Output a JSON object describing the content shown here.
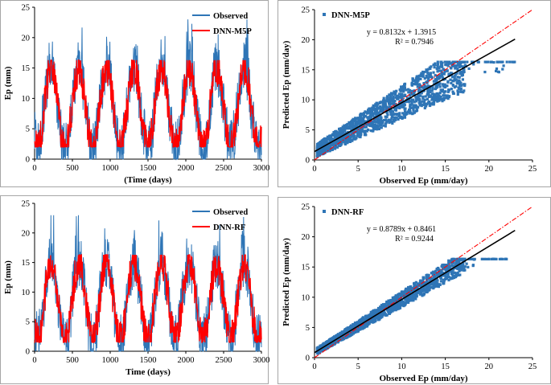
{
  "colors": {
    "observed": "#2e75b6",
    "predicted": "#ff0000",
    "scatter": "#2e75b6",
    "fit": "#000000",
    "ideal": "#ff0000"
  },
  "chart_data": [
    {
      "type": "line",
      "id": "ts-m5p",
      "xlabel": "(Time (days)",
      "ylabel": "Ep (mm)",
      "xlim": [
        0,
        3000
      ],
      "ylim": [
        0,
        25
      ],
      "xticks": [
        "0",
        "500",
        "1000",
        "1500",
        "2000",
        "2500",
        "3000"
      ],
      "yticks": [
        "0",
        "5",
        "10",
        "15",
        "20",
        "25"
      ],
      "series": [
        {
          "name": "Observed",
          "cycle_days": 365,
          "first_peak_day": 220,
          "mean": 8.5,
          "amplitude": 6,
          "max": 23,
          "min": 0
        },
        {
          "name": "DNN-M5P",
          "cycle_days": 365,
          "first_peak_day": 220,
          "mean": 8.5,
          "amplitude": 6.5,
          "max": 16.3,
          "min": 2
        }
      ],
      "legend": [
        "Observed",
        "DNN-M5P"
      ]
    },
    {
      "type": "scatter",
      "id": "sc-m5p",
      "xlabel": "Observed Ep (mm/day)",
      "ylabel": "Predicted Ep (mm/day)",
      "xlim": [
        0,
        25
      ],
      "ylim": [
        0,
        25
      ],
      "xticks": [
        "0",
        "5",
        "10",
        "15",
        "20",
        "25"
      ],
      "yticks": [
        "0",
        "5",
        "10",
        "15",
        "20",
        "25"
      ],
      "legend": "DNN-M5P",
      "equation": "y = 0.8132x + 1.3915",
      "r2": "R² = 0.7946",
      "fit": {
        "slope": 0.8132,
        "intercept": 1.3915,
        "x_range": [
          0,
          23
        ]
      },
      "pred_cap": 16.3,
      "noise": 2.6
    },
    {
      "type": "line",
      "id": "ts-rf",
      "xlabel": "Time (days)",
      "ylabel": "Ep (mm)",
      "xlim": [
        0,
        3000
      ],
      "ylim": [
        0,
        25
      ],
      "xticks": [
        "0",
        "500",
        "1000",
        "1500",
        "2000",
        "2500",
        "3000"
      ],
      "yticks": [
        "0",
        "5",
        "10",
        "15",
        "20",
        "25"
      ],
      "series": [
        {
          "name": "Observed",
          "cycle_days": 365,
          "first_peak_day": 220,
          "mean": 8.5,
          "amplitude": 6,
          "max": 23,
          "min": 0
        },
        {
          "name": "DNN-RF",
          "cycle_days": 365,
          "first_peak_day": 220,
          "mean": 8.5,
          "amplitude": 6.5,
          "max": 16.3,
          "min": 1.5
        }
      ],
      "legend": [
        "Observed",
        "DNN-RF"
      ]
    },
    {
      "type": "scatter",
      "id": "sc-rf",
      "xlabel": "Observed Ep (mm/day)",
      "ylabel": "Predicted Ep (mm/day)",
      "xlim": [
        0,
        25
      ],
      "ylim": [
        0,
        25
      ],
      "xticks": [
        "0",
        "5",
        "10",
        "15",
        "20",
        "25"
      ],
      "yticks": [
        "0",
        "5",
        "10",
        "15",
        "20",
        "25"
      ],
      "legend": "DNN-RF",
      "equation": "y = 0.8789x + 0.8461",
      "r2": "R² = 0.9244",
      "fit": {
        "slope": 0.8789,
        "intercept": 0.8461,
        "x_range": [
          0,
          23
        ]
      },
      "pred_cap": 16.3,
      "noise": 1.2
    }
  ]
}
